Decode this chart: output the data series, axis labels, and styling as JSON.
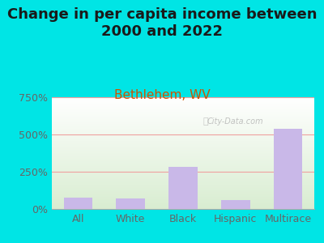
{
  "title": "Change in per capita income between\n2000 and 2022",
  "subtitle": "Bethlehem, WV",
  "categories": [
    "All",
    "White",
    "Black",
    "Hispanic",
    "Multirace"
  ],
  "values": [
    75,
    70,
    280,
    60,
    540
  ],
  "bar_color": "#c9b8e8",
  "outer_bg": "#00e5e5",
  "plot_bg_top": "#ffffff",
  "plot_bg_bottom": "#d8ecd0",
  "title_color": "#1a1a1a",
  "subtitle_color": "#cc5500",
  "tick_color": "#666666",
  "grid_color": "#f0a0a0",
  "ylim": [
    0,
    750
  ],
  "yticks": [
    0,
    250,
    500,
    750
  ],
  "ytick_labels": [
    "0%",
    "250%",
    "500%",
    "750%"
  ],
  "watermark": "City-Data.com",
  "title_fontsize": 13,
  "subtitle_fontsize": 11
}
